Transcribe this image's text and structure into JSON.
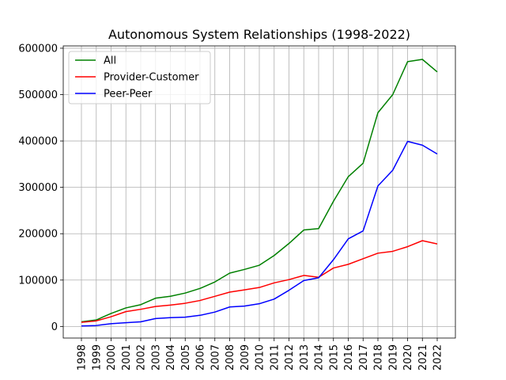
{
  "chart_data": {
    "type": "line",
    "title": "Autonomous System Relationships (1998-2022)",
    "xlabel": "",
    "ylabel": "",
    "x": [
      "1998",
      "1999",
      "2000",
      "2001",
      "2002",
      "2003",
      "2004",
      "2005",
      "2006",
      "2007",
      "2008",
      "2009",
      "2010",
      "2011",
      "2012",
      "2013",
      "2014",
      "2015",
      "2016",
      "2017",
      "2018",
      "2019",
      "2020",
      "2021",
      "2022"
    ],
    "ylim": [
      -25000,
      605000
    ],
    "yticks": [
      0,
      100000,
      200000,
      300000,
      400000,
      500000,
      600000
    ],
    "ytick_labels": [
      "0",
      "100000",
      "200000",
      "300000",
      "400000",
      "500000",
      "600000"
    ],
    "grid": true,
    "legend_position": "upper-left",
    "series": [
      {
        "name": "All",
        "color": "#008000",
        "values": [
          10000,
          14000,
          28000,
          40000,
          47000,
          61000,
          65000,
          72000,
          82000,
          96000,
          115000,
          123000,
          132000,
          153000,
          179000,
          208000,
          211000,
          270000,
          323000,
          352000,
          461000,
          500000,
          571000,
          576000,
          549000
        ]
      },
      {
        "name": "Provider-Customer",
        "color": "#ff0000",
        "values": [
          9000,
          12000,
          21000,
          32000,
          37000,
          43000,
          46000,
          50000,
          56000,
          65000,
          74000,
          79000,
          84000,
          94000,
          101000,
          110000,
          106000,
          126000,
          134000,
          146000,
          158000,
          162000,
          172000,
          185000,
          178000
        ]
      },
      {
        "name": "Peer-Peer",
        "color": "#0000ff",
        "values": [
          1000,
          2000,
          6000,
          8000,
          10000,
          17000,
          19000,
          20000,
          24000,
          31000,
          42000,
          44000,
          49000,
          59000,
          78000,
          99000,
          105000,
          144000,
          189000,
          206000,
          303000,
          337000,
          399000,
          391000,
          372000
        ]
      }
    ]
  }
}
